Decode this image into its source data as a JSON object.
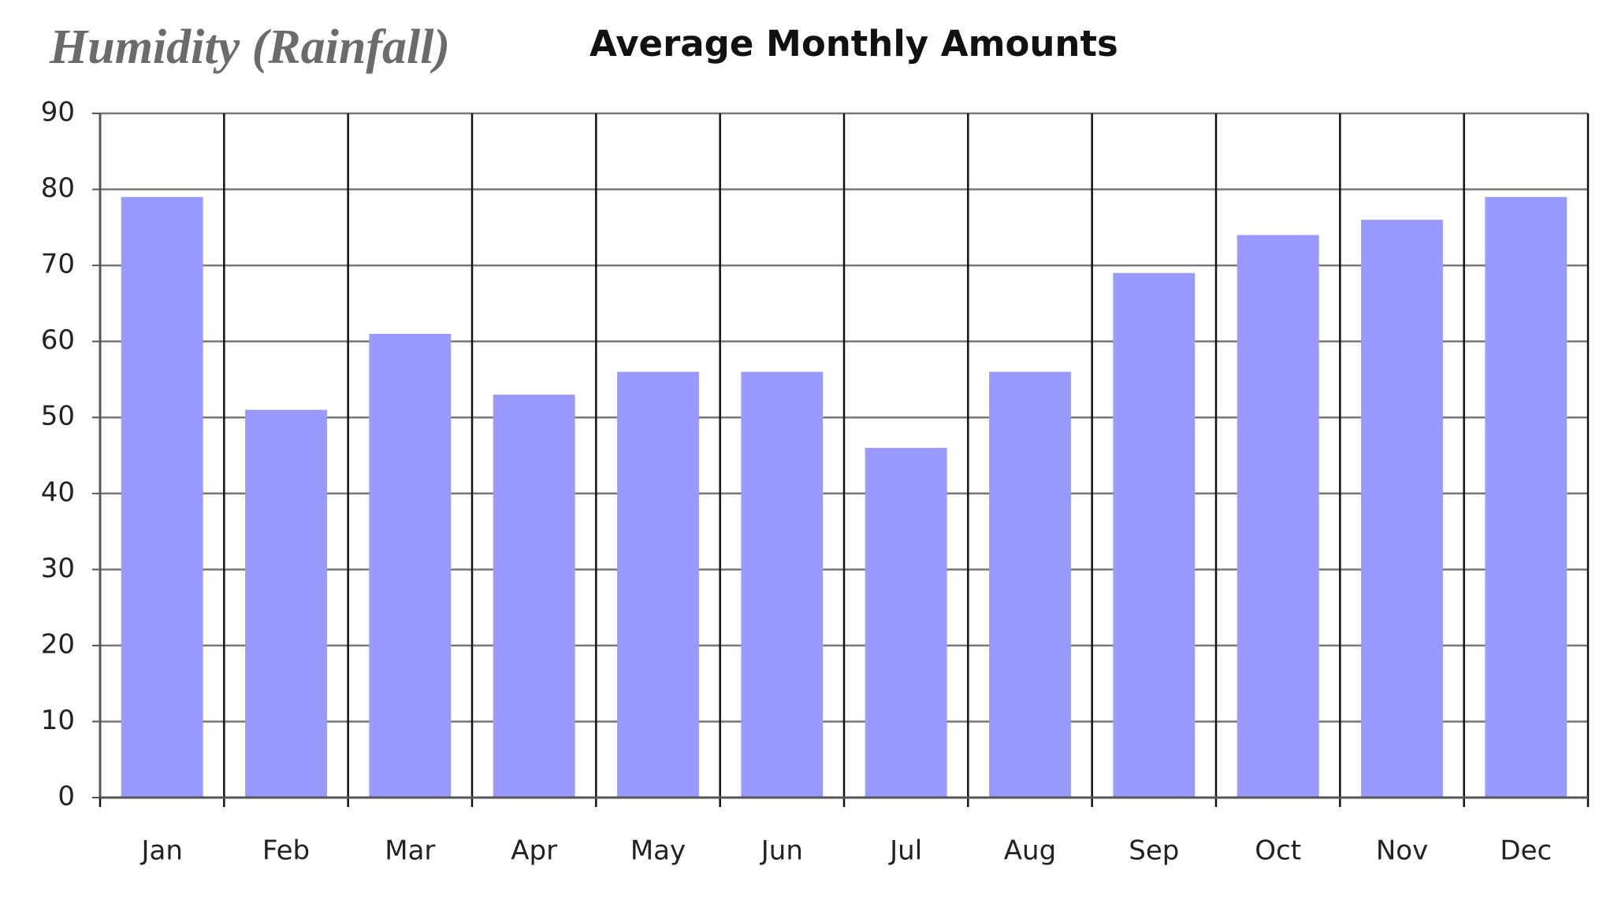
{
  "chart_data": {
    "type": "bar",
    "title": "Humidity (Rainfall)",
    "subtitle": "Average Monthly Amounts",
    "categories": [
      "Jan",
      "Feb",
      "Mar",
      "Apr",
      "May",
      "Jun",
      "Jul",
      "Aug",
      "Sep",
      "Oct",
      "Nov",
      "Dec"
    ],
    "values": [
      79,
      51,
      61,
      53,
      56,
      56,
      46,
      56,
      69,
      74,
      76,
      79
    ],
    "color": "#9999ff",
    "ylim": [
      0,
      90
    ],
    "yticks": [
      0,
      10,
      20,
      30,
      40,
      50,
      60,
      70,
      80,
      90
    ],
    "grid": true
  }
}
